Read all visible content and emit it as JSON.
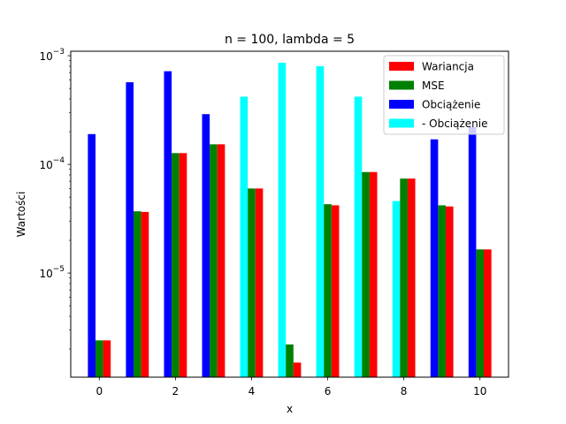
{
  "chart_data": {
    "type": "bar",
    "title": "n = 100, lambda = 5",
    "xlabel": "x",
    "ylabel": "Wartości",
    "yscale": "log",
    "xlim": [
      -0.75,
      10.75
    ],
    "ylim": [
      1.1e-06,
      0.0011
    ],
    "x_ticks": [
      0,
      2,
      4,
      6,
      8,
      10
    ],
    "y_ticks": [
      {
        "value": 1e-05,
        "base": "10",
        "exp": "−5"
      },
      {
        "value": 0.0001,
        "base": "10",
        "exp": "−4"
      },
      {
        "value": 0.001,
        "base": "10",
        "exp": "−3"
      }
    ],
    "categories": [
      0,
      1,
      2,
      3,
      4,
      5,
      6,
      7,
      8,
      9,
      10
    ],
    "legend_position": "top-right",
    "grid": false,
    "series": [
      {
        "name": "Wariancja",
        "color": "#ff0000",
        "values": [
          2.4e-06,
          3.65e-05,
          0.000127,
          0.000153,
          6e-05,
          1.5e-06,
          4.2e-05,
          8.5e-05,
          7.4e-05,
          4.1e-05,
          1.65e-05
        ]
      },
      {
        "name": "MSE",
        "color": "#008000",
        "values": [
          2.4e-06,
          3.7e-05,
          0.000127,
          0.000153,
          6e-05,
          2.2e-06,
          4.3e-05,
          8.5e-05,
          7.4e-05,
          4.2e-05,
          1.65e-05
        ]
      },
      {
        "name": "Obciążenie",
        "color": "#0000ff",
        "values": [
          0.00019,
          0.00057,
          0.00072,
          0.00029,
          null,
          null,
          null,
          null,
          null,
          0.00017,
          0.00022
        ]
      },
      {
        "name": "- Obciążenie",
        "color": "#00ffff",
        "values": [
          null,
          null,
          null,
          null,
          0.00042,
          0.00086,
          0.0008,
          0.00042,
          4.6e-05,
          null,
          null
        ]
      }
    ]
  }
}
